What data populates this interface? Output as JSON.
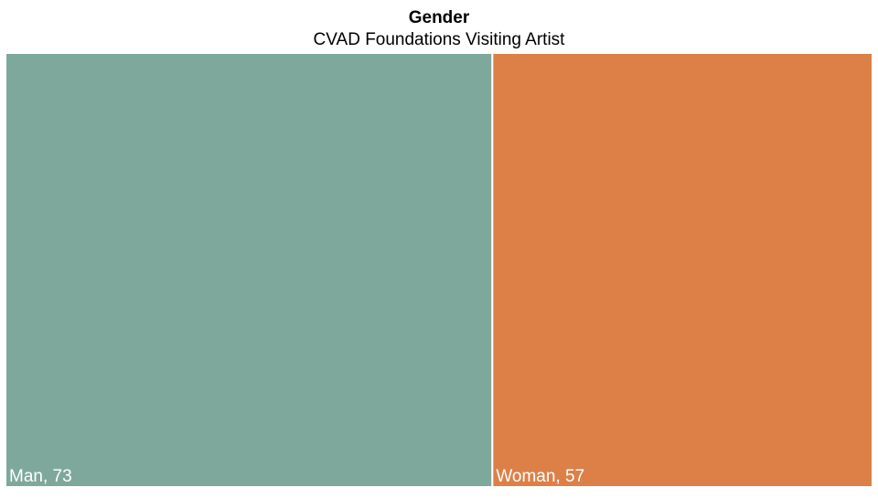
{
  "chart_data": {
    "type": "treemap",
    "title": "Gender",
    "subtitle": "CVAD Foundations Visiting Artist",
    "categories": [
      "Man",
      "Woman"
    ],
    "values": [
      73,
      57
    ],
    "value_labels": [
      "Man, 73",
      "Woman, 57"
    ],
    "colors": [
      "#7fa89c",
      "#dc8048"
    ]
  }
}
